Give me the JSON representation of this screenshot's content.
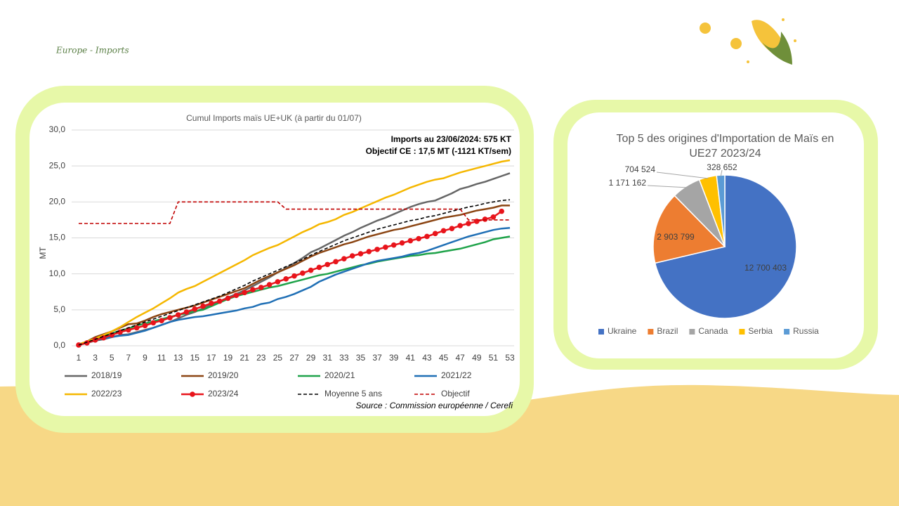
{
  "header": {
    "title": "Europe - Imports"
  },
  "chart_data": [
    {
      "type": "line",
      "title": "Cumul Imports maïs UE+UK (à partir du 01/07)",
      "ylabel": "MT",
      "annotations": [
        "Imports au 23/06/2024: 575 KT",
        "Objectif CE : 17,5 MT  (-1121 KT/sem)"
      ],
      "source": "Source : Commission européenne / Cerefi",
      "categories": [
        1,
        null,
        3,
        null,
        5,
        null,
        7,
        null,
        9,
        null,
        11,
        null,
        13,
        null,
        15,
        null,
        17,
        null,
        19,
        null,
        21,
        null,
        23,
        null,
        25,
        null,
        27,
        null,
        29,
        null,
        31,
        null,
        33,
        null,
        35,
        null,
        37,
        null,
        39,
        null,
        41,
        null,
        43,
        null,
        45,
        null,
        47,
        null,
        49,
        null,
        51,
        null,
        53
      ],
      "ylim": [
        0,
        30
      ],
      "yticks": [
        {
          "value": 0,
          "label": "0,0"
        },
        {
          "value": 5,
          "label": "5,0"
        },
        {
          "value": 10,
          "label": "10,0"
        },
        {
          "value": 15,
          "label": "15,0"
        },
        {
          "value": 20,
          "label": "20,0"
        },
        {
          "value": 25,
          "label": "25,0"
        },
        {
          "value": 30,
          "label": "30,0"
        }
      ],
      "grid": true,
      "legend": "bottom",
      "series": [
        {
          "name": "2018/19",
          "color": "#666666",
          "values": [
            0.1,
            0.4,
            0.7,
            0.9,
            1.2,
            1.5,
            1.6,
            1.9,
            2.2,
            2.5,
            2.9,
            3.3,
            3.8,
            4.3,
            4.7,
            5.2,
            5.7,
            6.2,
            6.7,
            7.2,
            7.7,
            8.3,
            8.9,
            9.5,
            10.2,
            10.8,
            11.5,
            12.2,
            13.0,
            13.5,
            14.1,
            14.7,
            15.3,
            15.8,
            16.4,
            16.9,
            17.4,
            17.8,
            18.3,
            18.8,
            19.3,
            19.7,
            20.0,
            20.2,
            20.7,
            21.2,
            21.8,
            22.1,
            22.5,
            22.8,
            23.2,
            23.6,
            24.0
          ]
        },
        {
          "name": "2019/20",
          "color": "#8b4513",
          "values": [
            0.2,
            0.6,
            1.2,
            1.6,
            2.0,
            2.5,
            3.0,
            3.1,
            3.5,
            4.0,
            4.4,
            4.7,
            5.0,
            5.3,
            5.6,
            6.0,
            6.4,
            6.8,
            7.2,
            7.6,
            8.0,
            8.6,
            9.2,
            9.7,
            10.2,
            10.7,
            11.2,
            11.8,
            12.4,
            12.9,
            13.3,
            13.7,
            14.1,
            14.4,
            14.8,
            15.2,
            15.5,
            15.8,
            16.1,
            16.3,
            16.6,
            16.9,
            17.2,
            17.5,
            17.8,
            18.0,
            18.2,
            18.5,
            18.8,
            19.0,
            19.2,
            19.5,
            19.5
          ]
        },
        {
          "name": "2020/21",
          "color": "#1fa34a",
          "values": [
            0.1,
            0.5,
            0.9,
            1.3,
            1.7,
            2.1,
            2.4,
            2.8,
            3.1,
            3.4,
            3.7,
            4.0,
            4.3,
            4.5,
            4.8,
            5.0,
            5.5,
            6.0,
            6.5,
            6.9,
            7.2,
            7.5,
            7.8,
            8.1,
            8.3,
            8.6,
            8.9,
            9.2,
            9.5,
            9.8,
            10.0,
            10.3,
            10.6,
            10.9,
            11.2,
            11.4,
            11.7,
            11.9,
            12.1,
            12.3,
            12.5,
            12.6,
            12.8,
            12.9,
            13.1,
            13.3,
            13.5,
            13.8,
            14.1,
            14.4,
            14.8,
            15.0,
            15.2
          ]
        },
        {
          "name": "2021/22",
          "color": "#1f6fb5",
          "values": [
            0.1,
            0.4,
            0.8,
            1.0,
            1.2,
            1.4,
            1.5,
            1.8,
            2.1,
            2.5,
            2.9,
            3.3,
            3.6,
            3.8,
            4.0,
            4.1,
            4.3,
            4.5,
            4.7,
            4.9,
            5.2,
            5.4,
            5.8,
            6.0,
            6.5,
            6.8,
            7.2,
            7.7,
            8.2,
            8.9,
            9.4,
            9.9,
            10.3,
            10.7,
            11.1,
            11.5,
            11.8,
            12.0,
            12.2,
            12.4,
            12.7,
            12.9,
            13.2,
            13.6,
            14.0,
            14.4,
            14.8,
            15.2,
            15.5,
            15.8,
            16.1,
            16.3,
            16.4
          ]
        },
        {
          "name": "2022/23",
          "color": "#f5b700",
          "values": [
            0.2,
            0.6,
            1.0,
            1.5,
            2.0,
            2.6,
            3.3,
            4.0,
            4.6,
            5.2,
            5.9,
            6.6,
            7.4,
            7.9,
            8.3,
            8.9,
            9.5,
            10.1,
            10.7,
            11.3,
            11.9,
            12.6,
            13.1,
            13.6,
            14.0,
            14.6,
            15.2,
            15.8,
            16.3,
            16.9,
            17.2,
            17.6,
            18.2,
            18.6,
            19.1,
            19.6,
            20.1,
            20.6,
            21.0,
            21.5,
            22.0,
            22.4,
            22.8,
            23.1,
            23.3,
            23.7,
            24.1,
            24.4,
            24.7,
            25.0,
            25.3,
            25.6,
            25.8
          ]
        },
        {
          "name": "2023/24",
          "color": "#e8141b",
          "marker": true,
          "values": [
            0.1,
            0.4,
            0.8,
            1.1,
            1.5,
            1.9,
            2.2,
            2.5,
            2.8,
            3.2,
            3.5,
            3.9,
            4.3,
            4.7,
            5.1,
            5.5,
            5.9,
            6.2,
            6.6,
            7.0,
            7.4,
            7.8,
            8.1,
            8.5,
            8.9,
            9.3,
            9.7,
            10.1,
            10.5,
            10.9,
            11.3,
            11.7,
            12.1,
            12.5,
            12.8,
            13.1,
            13.4,
            13.7,
            14.0,
            14.3,
            14.6,
            14.9,
            15.2,
            15.6,
            16.0,
            16.3,
            16.7,
            17.0,
            17.3,
            17.6,
            17.9,
            18.7,
            null
          ]
        },
        {
          "name": "Moyenne 5 ans",
          "color": "#000000",
          "dash": true,
          "values": [
            0.1,
            0.5,
            0.9,
            1.3,
            1.7,
            2.1,
            2.5,
            2.9,
            3.3,
            3.7,
            4.1,
            4.5,
            4.9,
            5.3,
            5.7,
            6.1,
            6.5,
            6.9,
            7.4,
            7.9,
            8.4,
            9.0,
            9.5,
            10.0,
            10.5,
            11.0,
            11.5,
            12.0,
            12.6,
            13.1,
            13.6,
            14.1,
            14.6,
            15.0,
            15.4,
            15.8,
            16.2,
            16.5,
            16.8,
            17.1,
            17.4,
            17.6,
            17.9,
            18.1,
            18.4,
            18.7,
            19.0,
            19.3,
            19.5,
            19.8,
            20.0,
            20.2,
            20.3
          ]
        },
        {
          "name": "Objectif",
          "color": "#c00000",
          "dash": true,
          "values": [
            17,
            17,
            17,
            17,
            17,
            17,
            17,
            17,
            17,
            17,
            17,
            17,
            20,
            20,
            20,
            20,
            20,
            20,
            20,
            20,
            20,
            20,
            20,
            20,
            20,
            19,
            19,
            19,
            19,
            19,
            19,
            19,
            19,
            19,
            19,
            19,
            19,
            19,
            19,
            19,
            19,
            19,
            19,
            19,
            19,
            19,
            19,
            17.5,
            17.5,
            17.5,
            17.5,
            17.5,
            17.5
          ]
        }
      ]
    },
    {
      "type": "pie",
      "title": "Top 5 des origines d'Importation de Maïs en UE27 2023/24",
      "categories": [
        "Ukraine",
        "Brazil",
        "Canada",
        "Serbia",
        "Russia"
      ],
      "values": [
        12700403,
        2903799,
        1171162,
        704524,
        328652
      ],
      "value_labels": [
        "12 700 403",
        "2 903 799",
        "1 171 162",
        "704 524",
        "328 652"
      ],
      "colors": [
        "#4472c4",
        "#ed7d31",
        "#a5a5a5",
        "#ffc000",
        "#5b9bd5"
      ],
      "legend": "bottom"
    }
  ]
}
